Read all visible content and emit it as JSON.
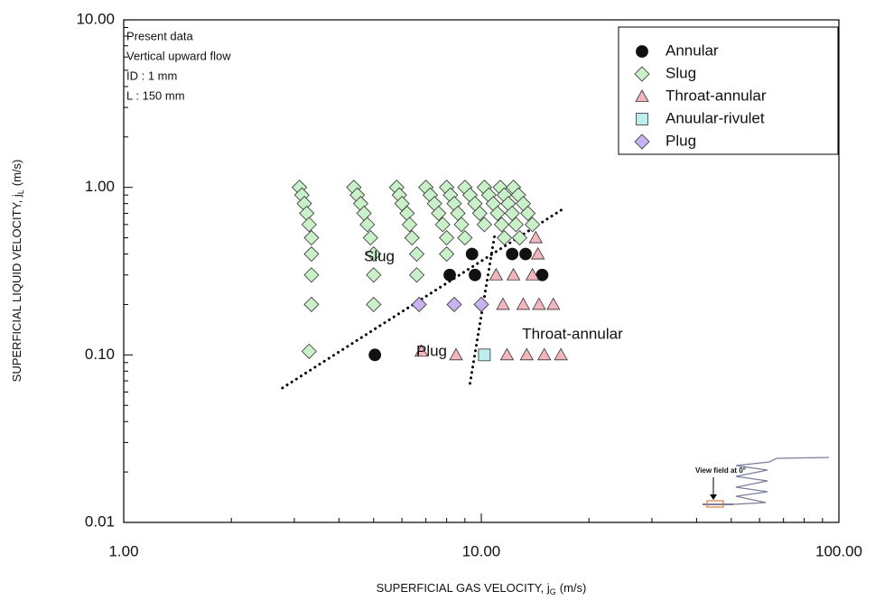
{
  "chart_data": {
    "type": "scatter",
    "log_x": true,
    "log_y": true,
    "legend": "upper right",
    "x_label": {
      "text": "SUPERFICIAL GAS VELOCITY, j",
      "sub": "G",
      "unit": "(m/s)"
    },
    "y_label": {
      "text": "SUPERFICIAL LIQUID VELOCITY, j",
      "sub": "L",
      "unit": "(m/s)"
    },
    "xlim": [
      1,
      100
    ],
    "ylim": [
      0.01,
      10
    ],
    "xticks": [
      {
        "value": 1,
        "label": "1.00"
      },
      {
        "value": 10,
        "label": "10.00"
      },
      {
        "value": 100,
        "label": "100.00"
      }
    ],
    "yticks": [
      {
        "value": 0.01,
        "label": "0.01"
      },
      {
        "value": 0.1,
        "label": "0.10"
      },
      {
        "value": 1,
        "label": "1.00"
      },
      {
        "value": 10,
        "label": "10.00"
      }
    ],
    "xminorticks": [
      2,
      3,
      4,
      5,
      6,
      7,
      8,
      9,
      20,
      30,
      40,
      50,
      60,
      70,
      80,
      90
    ],
    "yminorticks": [
      0.02,
      0.03,
      0.04,
      0.05,
      0.06,
      0.07,
      0.08,
      0.09,
      0.2,
      0.3,
      0.4,
      0.5,
      0.6,
      0.7,
      0.8,
      0.9,
      2,
      3,
      4,
      5,
      6,
      7,
      8,
      9
    ],
    "notes": [
      "Present data",
      "Vertical upward flow",
      "ID : 1 mm",
      "L   : 150 mm"
    ],
    "regions": [
      "Slug",
      "Plug",
      "Throat-annular"
    ],
    "inset_label": "View field at 0°",
    "series": [
      {
        "name": "Annular",
        "marker": "circle",
        "color": "#111111",
        "x": [
          5.04,
          8.16,
          9.42,
          9.6,
          12.2,
          13.3,
          14.8
        ],
        "values": [
          0.1,
          0.3,
          0.4,
          0.3,
          0.4,
          0.4,
          0.3
        ]
      },
      {
        "name": "Slug",
        "marker": "diamond",
        "color": "#c9f0c9",
        "x": [
          3.1,
          3.15,
          3.2,
          3.25,
          3.3,
          3.35,
          3.35,
          3.35,
          3.35,
          3.3,
          4.4,
          4.5,
          4.6,
          4.7,
          4.8,
          4.9,
          5.0,
          5.0,
          5.0,
          5.8,
          5.9,
          6.0,
          6.2,
          6.3,
          6.4,
          6.6,
          6.6,
          7.0,
          7.2,
          7.4,
          7.6,
          7.8,
          8.0,
          8.0,
          8.0,
          8.2,
          8.4,
          8.6,
          8.8,
          9.0,
          9.0,
          9.3,
          9.6,
          9.9,
          10.2,
          10.2,
          10.5,
          10.8,
          11.1,
          11.4,
          11.6,
          11.3,
          11.6,
          11.9,
          12.2,
          12.5,
          12.8,
          12.3,
          12.7,
          13.1,
          13.5,
          13.9
        ],
        "values": [
          1.0,
          0.9,
          0.8,
          0.7,
          0.6,
          0.5,
          0.4,
          0.3,
          0.2,
          0.105,
          1.0,
          0.9,
          0.8,
          0.7,
          0.6,
          0.5,
          0.4,
          0.3,
          0.2,
          1.0,
          0.9,
          0.8,
          0.7,
          0.6,
          0.5,
          0.4,
          0.3,
          1.0,
          0.9,
          0.8,
          0.7,
          0.6,
          0.5,
          0.4,
          1.0,
          0.9,
          0.8,
          0.7,
          0.6,
          0.5,
          1.0,
          0.9,
          0.8,
          0.7,
          0.6,
          1.0,
          0.9,
          0.8,
          0.7,
          0.6,
          0.5,
          1.0,
          0.9,
          0.8,
          0.7,
          0.6,
          0.5,
          1.0,
          0.9,
          0.8,
          0.7,
          0.6
        ]
      },
      {
        "name": "Throat-annular",
        "marker": "triangle",
        "color": "#f4b6be",
        "x": [
          11.0,
          12.3,
          13.9,
          11.5,
          13.1,
          14.5,
          15.9,
          8.5,
          11.8,
          13.4,
          15.0,
          16.7,
          6.8,
          14.2,
          14.4
        ],
        "values": [
          0.3,
          0.3,
          0.3,
          0.2,
          0.2,
          0.2,
          0.2,
          0.1,
          0.1,
          0.1,
          0.1,
          0.1,
          0.105,
          0.5,
          0.4
        ]
      },
      {
        "name": "Anuular-rivulet",
        "marker": "square",
        "color": "#bdeeee",
        "x": [
          10.2
        ],
        "values": [
          0.1
        ]
      },
      {
        "name": "Plug",
        "marker": "diamond",
        "color": "#c7b3ef",
        "x": [
          6.7,
          8.4,
          10.0
        ],
        "values": [
          0.2,
          0.2,
          0.2
        ]
      }
    ],
    "boundaries": [
      {
        "x": [
          2.78,
          17.2
        ],
        "values": [
          0.0635,
          0.76
        ]
      },
      {
        "x": [
          9.3,
          10.9
        ],
        "values": [
          0.0676,
          0.52
        ]
      }
    ]
  }
}
